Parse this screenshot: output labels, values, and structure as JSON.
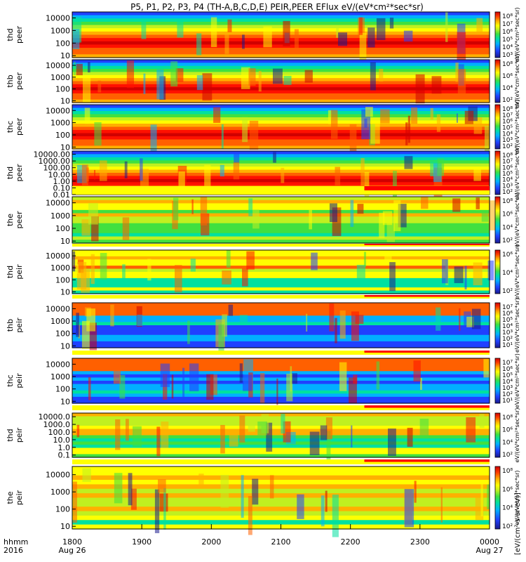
{
  "chart_data": {
    "type": "heatmap",
    "title": "P5, P1, P2, P3, P4 (TH-A,B,C,D,E) PEIR,PEER EFlux eV/(eV*cm²*sec*sr)",
    "x_label_row1": "hhmm",
    "x_label_row2": "2016",
    "x_ticks": [
      "1800",
      "1900",
      "2000",
      "2100",
      "2200",
      "2300",
      "0000"
    ],
    "x_dates": [
      "Aug 26",
      "Aug 27"
    ],
    "xlim": [
      "2016-08-26 18:00",
      "2016-08-27 00:00"
    ],
    "colorbar_label": "eV/(eV*cm²*sec*sr)",
    "colorbar_unit_text": "[eV/(cm²-s-sr-eV)]",
    "panels": [
      {
        "name": "thd peer",
        "l1": "thd",
        "l2": "peer",
        "yticks": [
          "10",
          "100",
          "1000",
          "10000"
        ],
        "ylim": [
          7,
          30000
        ],
        "cb_ticks": [
          "10⁸",
          "10⁷",
          "10⁶",
          "10⁵",
          "10⁴",
          "10³"
        ],
        "quality_bar": false
      },
      {
        "name": "thb peer",
        "l1": "thb",
        "l2": "peer",
        "yticks": [
          "10",
          "100",
          "1000",
          "10000"
        ],
        "ylim": [
          7,
          30000
        ],
        "cb_ticks": [
          "10⁸",
          "10⁶",
          "10⁴",
          "10²"
        ],
        "quality_bar": false
      },
      {
        "name": "thc peer",
        "l1": "thc",
        "l2": "peer",
        "yticks": [
          "10",
          "100",
          "1000",
          "10000"
        ],
        "ylim": [
          7,
          30000
        ],
        "cb_ticks": [
          "10⁸",
          "10⁷",
          "10⁶",
          "10⁵",
          "10⁴",
          "10³",
          "10²"
        ],
        "quality_bar": false
      },
      {
        "name": "thd peer",
        "l1": "thd",
        "l2": "peer",
        "yticks": [
          "0.01",
          "0.10",
          "1.00",
          "10.00",
          "100.00",
          "1000.00",
          "10000.00"
        ],
        "ylim": [
          0.01,
          30000
        ],
        "cb_ticks": [
          "10⁸",
          "10⁷",
          "10⁶",
          "10⁵",
          "10⁴",
          "10³",
          "10²"
        ],
        "quality_bar": true
      },
      {
        "name": "the peer",
        "l1": "the",
        "l2": "peer",
        "yticks": [
          "10",
          "100",
          "1000",
          "10000"
        ],
        "ylim": [
          7,
          30000
        ],
        "cb_ticks": [
          "10⁸",
          "10⁶",
          "10⁴",
          "10²"
        ],
        "quality_bar": true
      },
      {
        "name": "thd peir",
        "l1": "thd",
        "l2": "peir",
        "yticks": [
          "10",
          "100",
          "1000",
          "10000"
        ],
        "ylim": [
          7,
          30000
        ],
        "cb_ticks": [
          "10⁶",
          "10⁴",
          "10²"
        ],
        "quality_bar": true
      },
      {
        "name": "thb peir",
        "l1": "thb",
        "l2": "peir",
        "yticks": [
          "10",
          "100",
          "1000",
          "10000"
        ],
        "ylim": [
          7,
          30000
        ],
        "cb_ticks": [
          "10⁷",
          "10⁶",
          "10⁵",
          "10⁴",
          "10³",
          "10²",
          "10¹"
        ],
        "quality_bar": true
      },
      {
        "name": "thc peir",
        "l1": "thc",
        "l2": "peir",
        "yticks": [
          "10",
          "100",
          "1000",
          "10000"
        ],
        "ylim": [
          7,
          30000
        ],
        "cb_ticks": [
          "10⁷",
          "10⁶",
          "10⁵",
          "10⁴",
          "10³",
          "10²",
          "10¹"
        ],
        "quality_bar": true
      },
      {
        "name": "thd peir",
        "l1": "thd",
        "l2": "peir",
        "yticks": [
          "0.1",
          "1.0",
          "10.0",
          "100.0",
          "1000.0",
          "10000.0"
        ],
        "ylim": [
          0.05,
          30000
        ],
        "cb_ticks": [
          "10⁸",
          "10⁶",
          "10⁴",
          "10²"
        ],
        "quality_bar": true
      },
      {
        "name": "the peir",
        "l1": "the",
        "l2": "peir",
        "yticks": [
          "10",
          "100",
          "1000",
          "10000"
        ],
        "ylim": [
          7,
          30000
        ],
        "cb_ticks": [
          "10⁸",
          "10⁶",
          "10⁴",
          "10²"
        ],
        "quality_bar": true
      }
    ],
    "colors": {
      "palette": [
        "#1a1a8c",
        "#2040ff",
        "#00b0ff",
        "#00e0a0",
        "#40e040",
        "#c0f020",
        "#ffff00",
        "#ffb000",
        "#ff6000",
        "#ff1000",
        "#d00000"
      ],
      "quality_good": "#ffff00",
      "quality_flag": "#ff0000",
      "background": "#ffffff"
    }
  }
}
